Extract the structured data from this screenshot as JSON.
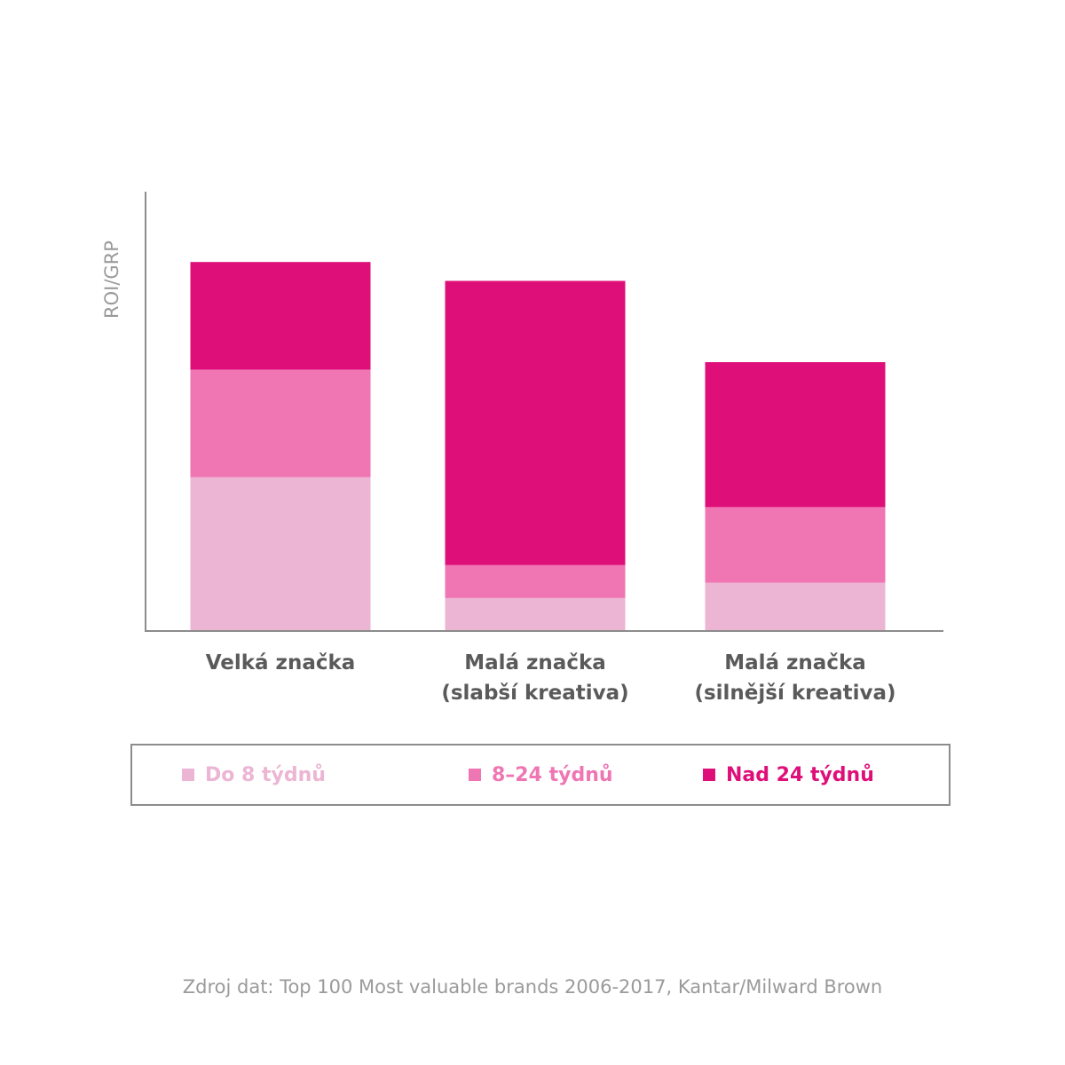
{
  "chart_data": {
    "type": "bar",
    "stacked": true,
    "ylabel": "ROI/GRP",
    "xlabel": "",
    "ylim": [
      0,
      100
    ],
    "y_ticks_shown": false,
    "categories": [
      [
        "Velká značka"
      ],
      [
        "Malá značka",
        "(slabší kreativa)"
      ],
      [
        "Malá značka",
        "(silnější kreativa)"
      ]
    ],
    "series": [
      {
        "name": "Do 8 týdnů",
        "color": "#ecb5d3",
        "values": [
          35,
          7.5,
          11
        ]
      },
      {
        "name": "8–24 týdnů",
        "color": "#ef76b3",
        "values": [
          24.5,
          7.5,
          17.2
        ]
      },
      {
        "name": "Nad 24 týdnů",
        "color": "#df0f7a",
        "values": [
          24.5,
          64.7,
          33
        ]
      }
    ],
    "legend_position": "bottom"
  },
  "source": "Zdroj dat: Top 100 Most valuable brands 2006-2017, Kantar/Milward Brown"
}
